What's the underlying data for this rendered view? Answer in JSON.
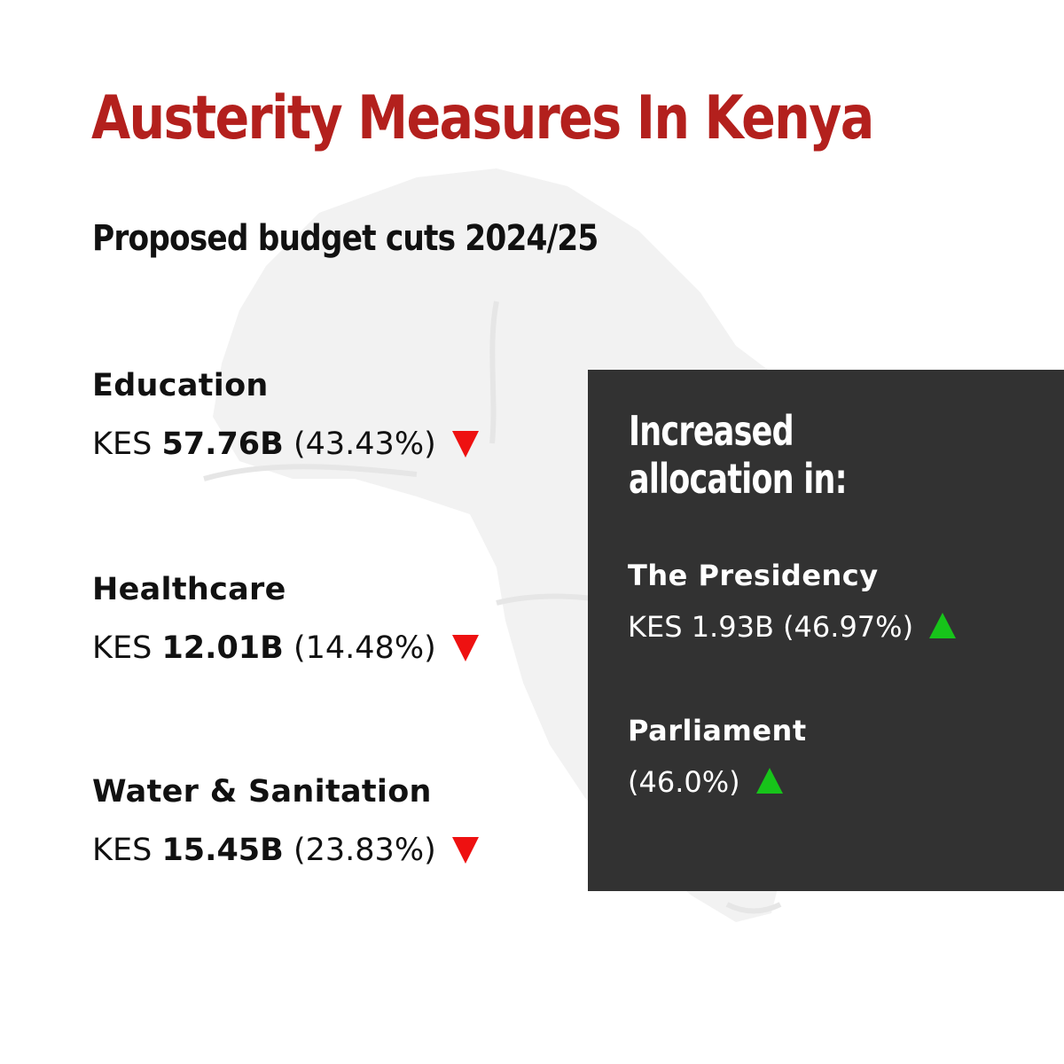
{
  "title": "Austerity Measures In Kenya",
  "subtitle": "Proposed budget cuts 2024/25",
  "colors": {
    "title": "#b3201d",
    "down": "#ee1111",
    "up": "#17c41a",
    "panel": "#323232"
  },
  "cuts": [
    {
      "name": "Education",
      "currency": "KES",
      "amount": "57.76B",
      "percent": "(43.43%)"
    },
    {
      "name": "Healthcare",
      "currency": "KES",
      "amount": "12.01B",
      "percent": "(14.48%)"
    },
    {
      "name": "Water & Sanitation",
      "currency": "KES",
      "amount": "15.45B",
      "percent": "(23.83%)"
    }
  ],
  "increases": {
    "heading_line1": "Increased",
    "heading_line2": "allocation in:",
    "items": [
      {
        "name": "The Presidency",
        "value": "KES 1.93B (46.97%)"
      },
      {
        "name": "Parliament",
        "value": "(46.0%)"
      }
    ]
  }
}
